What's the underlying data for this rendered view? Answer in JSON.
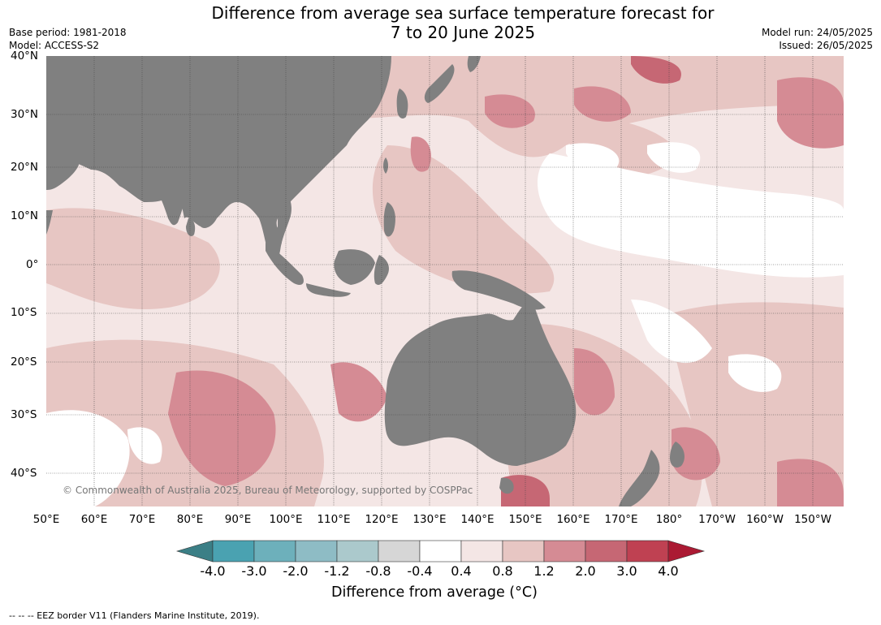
{
  "title_line1": "Difference from average sea surface temperature forecast for",
  "title_line2": "7 to 20 June 2025",
  "base_period": "Base period: 1981-2018",
  "model": "Model: ACCESS-S2",
  "model_run": "Model run: 24/05/2025",
  "issued": "Issued: 26/05/2025",
  "lat_labels": [
    "40°N",
    "30°N",
    "20°N",
    "10°N",
    "0°",
    "10°S",
    "20°S",
    "30°S",
    "40°S"
  ],
  "lon_labels": [
    "50°E",
    "60°E",
    "70°E",
    "80°E",
    "90°E",
    "100°E",
    "110°E",
    "120°E",
    "130°E",
    "140°E",
    "150°E",
    "160°E",
    "170°E",
    "180°",
    "170°W",
    "160°W",
    "150°W"
  ],
  "copyright": "© Commonwealth of Australia 2025, Bureau of Meteorology, supported by COSPPac",
  "colorbar": {
    "ticks": [
      "-4.0",
      "-3.0",
      "-2.0",
      "-1.2",
      "-0.8",
      "-0.4",
      "0.4",
      "0.8",
      "1.2",
      "2.0",
      "3.0",
      "4.0"
    ],
    "colors": [
      "#3b7f86",
      "#4aa2b1",
      "#6db0bb",
      "#8ebcc5",
      "#abc9cc",
      "#d6d6d6",
      "#ffffff",
      "#f4e6e5",
      "#e7c6c3",
      "#d58b94",
      "#c66774",
      "#bf4152",
      "#ab1a33"
    ],
    "label": "Difference from average (°C)"
  },
  "eez_note": "--  --  -- EEZ border V11 (Flanders Marine Institute, 2019).",
  "land_color": "#808080"
}
